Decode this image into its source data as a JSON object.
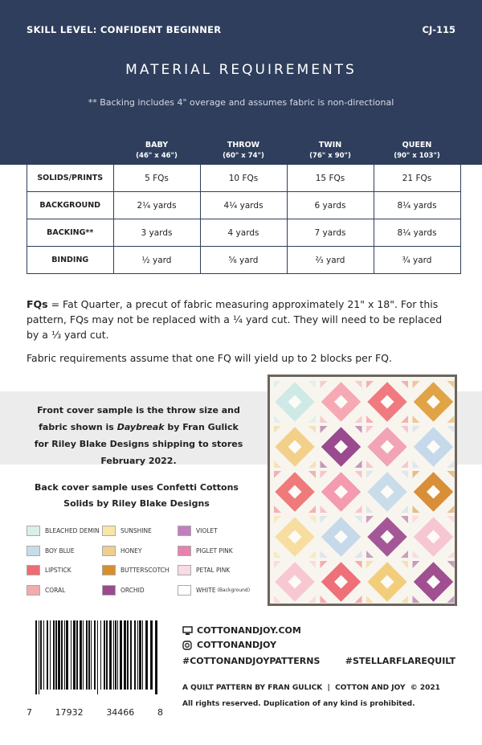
{
  "header": {
    "skill_level": "SKILL LEVEL: CONFIDENT BEGINNER",
    "code": "CJ-115",
    "title": "MATERIAL REQUIREMENTS",
    "note": "** Backing includes 4\" overage and assumes fabric is non-directional"
  },
  "table": {
    "columns": [
      {
        "name": "BABY",
        "size": "(46\" x 46\")"
      },
      {
        "name": "THROW",
        "size": "(60\" x 74\")"
      },
      {
        "name": "TWIN",
        "size": "(76\" x 90\")"
      },
      {
        "name": "QUEEN",
        "size": "(90\" x 103\")"
      }
    ],
    "rows": [
      {
        "label": "SOLIDS/PRINTS",
        "cells": [
          "5 FQs",
          "10 FQs",
          "15 FQs",
          "21 FQs"
        ]
      },
      {
        "label": "BACKGROUND",
        "cells": [
          "2¼ yards",
          "4¼ yards",
          "6 yards",
          "8¼ yards"
        ]
      },
      {
        "label": "BACKING**",
        "cells": [
          "3 yards",
          "4 yards",
          "7 yards",
          "8¼ yards"
        ]
      },
      {
        "label": "BINDING",
        "cells": [
          "½ yard",
          "⅝ yard",
          "⅔ yard",
          "¾ yard"
        ]
      }
    ]
  },
  "notes": {
    "fq_term": "FQs",
    "fq_text": " = Fat Quarter, a precut of fabric measuring approximately 21\" x 18\". For this pattern, FQs may not be replaced with a ¼ yard cut. They will need to be replaced by a ⅓ yard cut.",
    "yield": "Fabric requirements assume that one FQ will yield up to 2 blocks per FQ."
  },
  "sample": {
    "before": "Front cover  sample is the throw size and fabric shown is ",
    "fabric": "Daybreak",
    "after": " by Fran Gulick for Riley Blake Designs shipping to stores February 2022."
  },
  "back_cover": "Back cover sample uses Confetti Cottons Solids by Riley Blake Designs",
  "swatches": [
    {
      "name": "BLEACHED DEMIN",
      "color": "#d9efe9"
    },
    {
      "name": "BOY BLUE",
      "color": "#c7dcea"
    },
    {
      "name": "LIPSTICK",
      "color": "#ee6b72"
    },
    {
      "name": "CORAL",
      "color": "#f2abae"
    },
    {
      "name": "SUNSHINE",
      "color": "#f9e6a6"
    },
    {
      "name": "HONEY",
      "color": "#efcf8f"
    },
    {
      "name": "BUTTERSCOTCH",
      "color": "#d68f2f"
    },
    {
      "name": "ORCHID",
      "color": "#9a4a8e"
    },
    {
      "name": "VIOLET",
      "color": "#c17fbf"
    },
    {
      "name": "PIGLET PINK",
      "color": "#e583ae"
    },
    {
      "name": "PETAL PINK",
      "color": "#f9dbe5"
    },
    {
      "name": "WHITE",
      "note": "(Background)",
      "color": "#ffffff"
    }
  ],
  "barcode": [
    "7",
    "17932",
    "34466",
    "8"
  ],
  "links": {
    "website": "COTTONANDJOY.COM",
    "instagram": "COTTONANDJOY",
    "hashtag1": "#COTTONANDJOYPATTERNS",
    "hashtag2": "#STELLARFLAREQUILT"
  },
  "footer": {
    "byline": "A QUILT PATTERN BY FRAN GULICK",
    "brand": "COTTON AND JOY",
    "copyright": "© 2021",
    "rights": "All rights reserved. Duplication of any kind is prohibited."
  }
}
